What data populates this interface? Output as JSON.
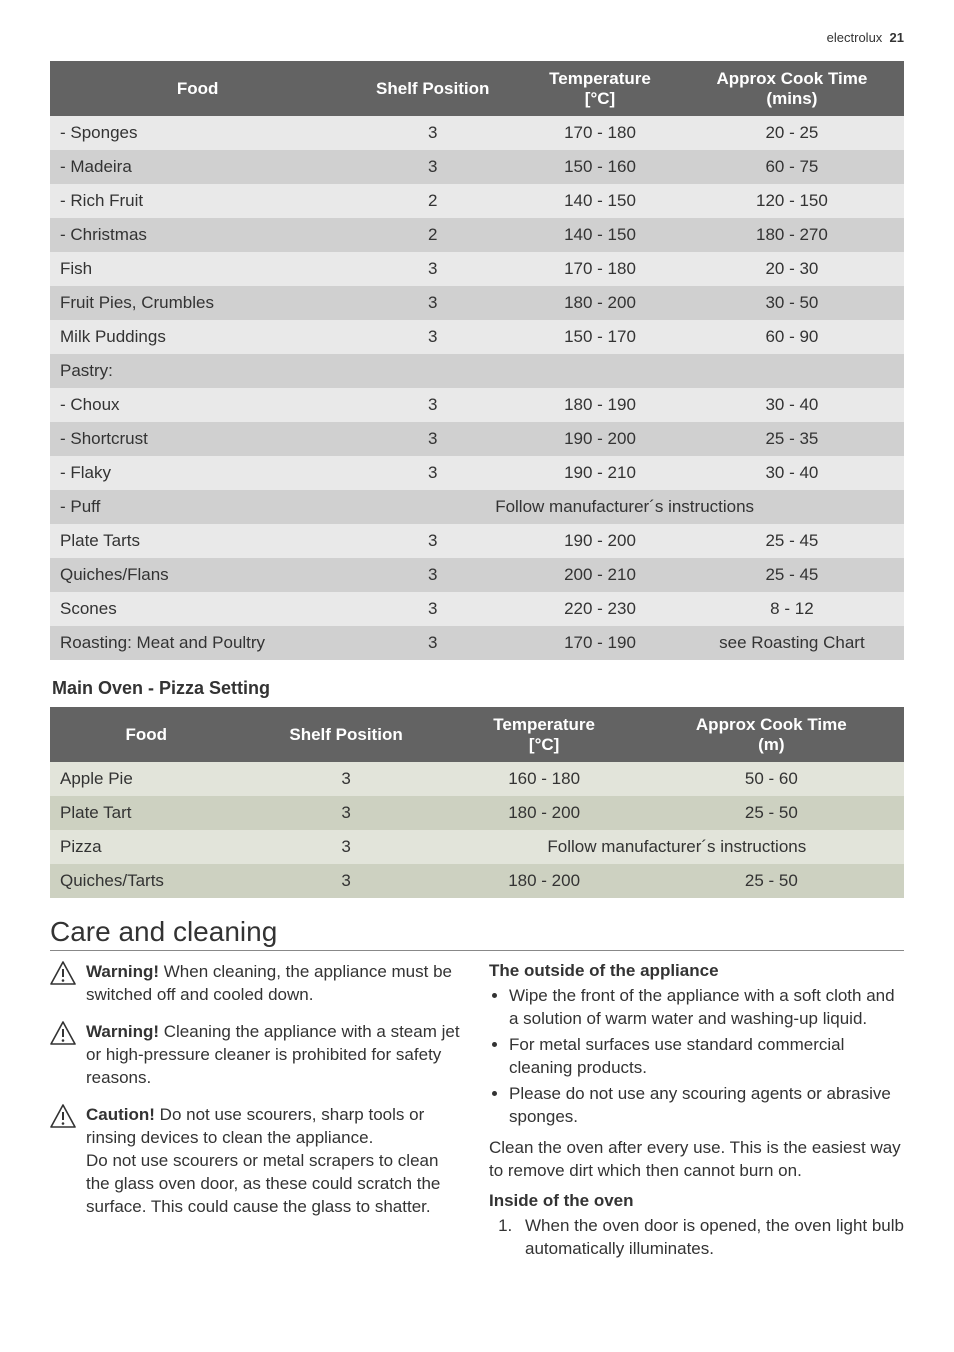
{
  "header": {
    "brand": "electrolux",
    "page": "21"
  },
  "table1": {
    "headers": [
      "Food",
      "Shelf Position",
      "Temperature [°C]",
      "Approx Cook Time (mins)"
    ],
    "rows": [
      {
        "c": [
          "- Sponges",
          "3",
          "170 - 180",
          "20 - 25"
        ]
      },
      {
        "c": [
          "- Madeira",
          "3",
          "150 - 160",
          "60 - 75"
        ]
      },
      {
        "c": [
          "- Rich Fruit",
          "2",
          "140 - 150",
          "120 - 150"
        ]
      },
      {
        "c": [
          "- Christmas",
          "2",
          "140 - 150",
          "180 - 270"
        ]
      },
      {
        "c": [
          "Fish",
          "3",
          "170 - 180",
          "20 - 30"
        ]
      },
      {
        "c": [
          "Fruit Pies, Crumbles",
          "3",
          "180 - 200",
          "30 - 50"
        ]
      },
      {
        "c": [
          "Milk Puddings",
          "3",
          "150 - 170",
          "60 - 90"
        ]
      },
      {
        "c": [
          "Pastry:",
          "",
          "",
          ""
        ]
      },
      {
        "c": [
          "- Choux",
          "3",
          "180 - 190",
          "30 - 40"
        ]
      },
      {
        "c": [
          "- Shortcrust",
          "3",
          "190 - 200",
          "25 - 35"
        ]
      },
      {
        "c": [
          "- Flaky",
          "3",
          "190 - 210",
          "30 - 40"
        ]
      },
      {
        "c": [
          "- Puff"
        ],
        "merged": "Follow manufacturer´s instructions"
      },
      {
        "c": [
          "Plate Tarts",
          "3",
          "190 - 200",
          "25 - 45"
        ]
      },
      {
        "c": [
          "Quiches/Flans",
          "3",
          "200 - 210",
          "25 - 45"
        ]
      },
      {
        "c": [
          "Scones",
          "3",
          "220 - 230",
          "8 - 12"
        ]
      },
      {
        "c": [
          "Roasting: Meat and Poultry",
          "3",
          "170 - 190",
          "see Roasting Chart"
        ]
      }
    ]
  },
  "sectionSub": "Main Oven - Pizza Setting",
  "table2": {
    "headers": [
      "Food",
      "Shelf Position",
      "Temperature [°C]",
      "Approx Cook Time (m)"
    ],
    "rows": [
      {
        "c": [
          "Apple Pie",
          "3",
          "160 - 180",
          "50 - 60"
        ]
      },
      {
        "c": [
          "Plate Tart",
          "3",
          "180 - 200",
          "25 - 50"
        ]
      },
      {
        "c": [
          "Pizza",
          "3"
        ],
        "merged": "Follow manufacturer´s instructions"
      },
      {
        "c": [
          "Quiches/Tarts",
          "3",
          "180 - 200",
          "25 - 50"
        ]
      }
    ]
  },
  "sectionMain": "Care and cleaning",
  "warnings": [
    {
      "bold": "Warning!",
      "text": " When cleaning, the appliance must be switched off and cooled down."
    },
    {
      "bold": "Warning!",
      "text": " Cleaning the appliance with a steam jet or high-pressure cleaner is prohibited for safety reasons."
    },
    {
      "bold": "Caution!",
      "text": " Do not use scourers, sharp tools or rinsing devices to clean the appliance.",
      "extra": "Do not use scourers or metal scrapers to clean the glass oven door, as these could scratch the surface. This could cause the glass to shatter."
    }
  ],
  "right": {
    "h1": "The outside of the appliance",
    "bullets": [
      "Wipe the front of the appliance with a soft cloth and a solution of warm water and washing-up liquid.",
      "For metal surfaces use standard commercial cleaning products.",
      "Please do not use any scouring agents or abrasive sponges."
    ],
    "p1": "Clean the oven after every use. This is the easiest way to remove dirt which then cannot burn on.",
    "h2": "Inside of the oven",
    "ol": [
      "When the oven door is opened, the oven light bulb automatically illuminates."
    ]
  },
  "colors": {
    "header_bg": "#636363",
    "t1_odd": "#e9e9e9",
    "t1_even": "#d0d0d0",
    "t2_odd": "#e2e4da",
    "t2_even": "#cdd1c1"
  }
}
